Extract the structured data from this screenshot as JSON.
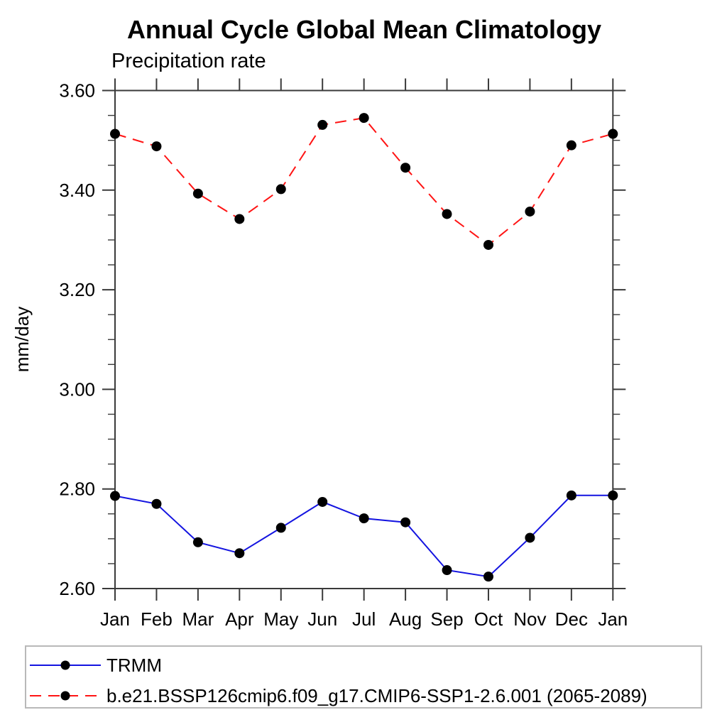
{
  "chart_data": {
    "type": "line",
    "title": "Annual Cycle Global Mean Climatology",
    "subtitle": "Precipitation rate",
    "xlabel": "",
    "ylabel": "mm/day",
    "categories": [
      "Jan",
      "Feb",
      "Mar",
      "Apr",
      "May",
      "Jun",
      "Jul",
      "Aug",
      "Sep",
      "Oct",
      "Nov",
      "Dec",
      "Jan"
    ],
    "ylim": [
      2.6,
      3.6
    ],
    "ytick_labels": [
      "2.60",
      "2.80",
      "3.00",
      "3.20",
      "3.40",
      "3.60"
    ],
    "ytick_major_step": 0.2,
    "ytick_minor_step": 0.05,
    "grid": false,
    "legend_position": "bottom-left-box",
    "series": [
      {
        "name": "TRMM",
        "color": "#1414e0",
        "line_style": "solid",
        "marker": "filled-circle",
        "marker_color": "#000000",
        "values": [
          2.786,
          2.77,
          2.693,
          2.671,
          2.722,
          2.774,
          2.741,
          2.733,
          2.637,
          2.624,
          2.702,
          2.787,
          2.787
        ]
      },
      {
        "name": "b.e21.BSSP126cmip6.f09_g17.CMIP6-SSP1-2.6.001 (2065-2089)",
        "color": "#ff1414",
        "line_style": "dashed",
        "marker": "filled-circle",
        "marker_color": "#000000",
        "values": [
          3.513,
          3.488,
          3.393,
          3.342,
          3.402,
          3.531,
          3.545,
          3.445,
          3.352,
          3.29,
          3.357,
          3.49,
          3.513
        ]
      }
    ]
  },
  "colors": {
    "axis": "#3a3a3a",
    "marker": "#000000",
    "legend_border": "#b9b9b9",
    "background": "#ffffff"
  }
}
